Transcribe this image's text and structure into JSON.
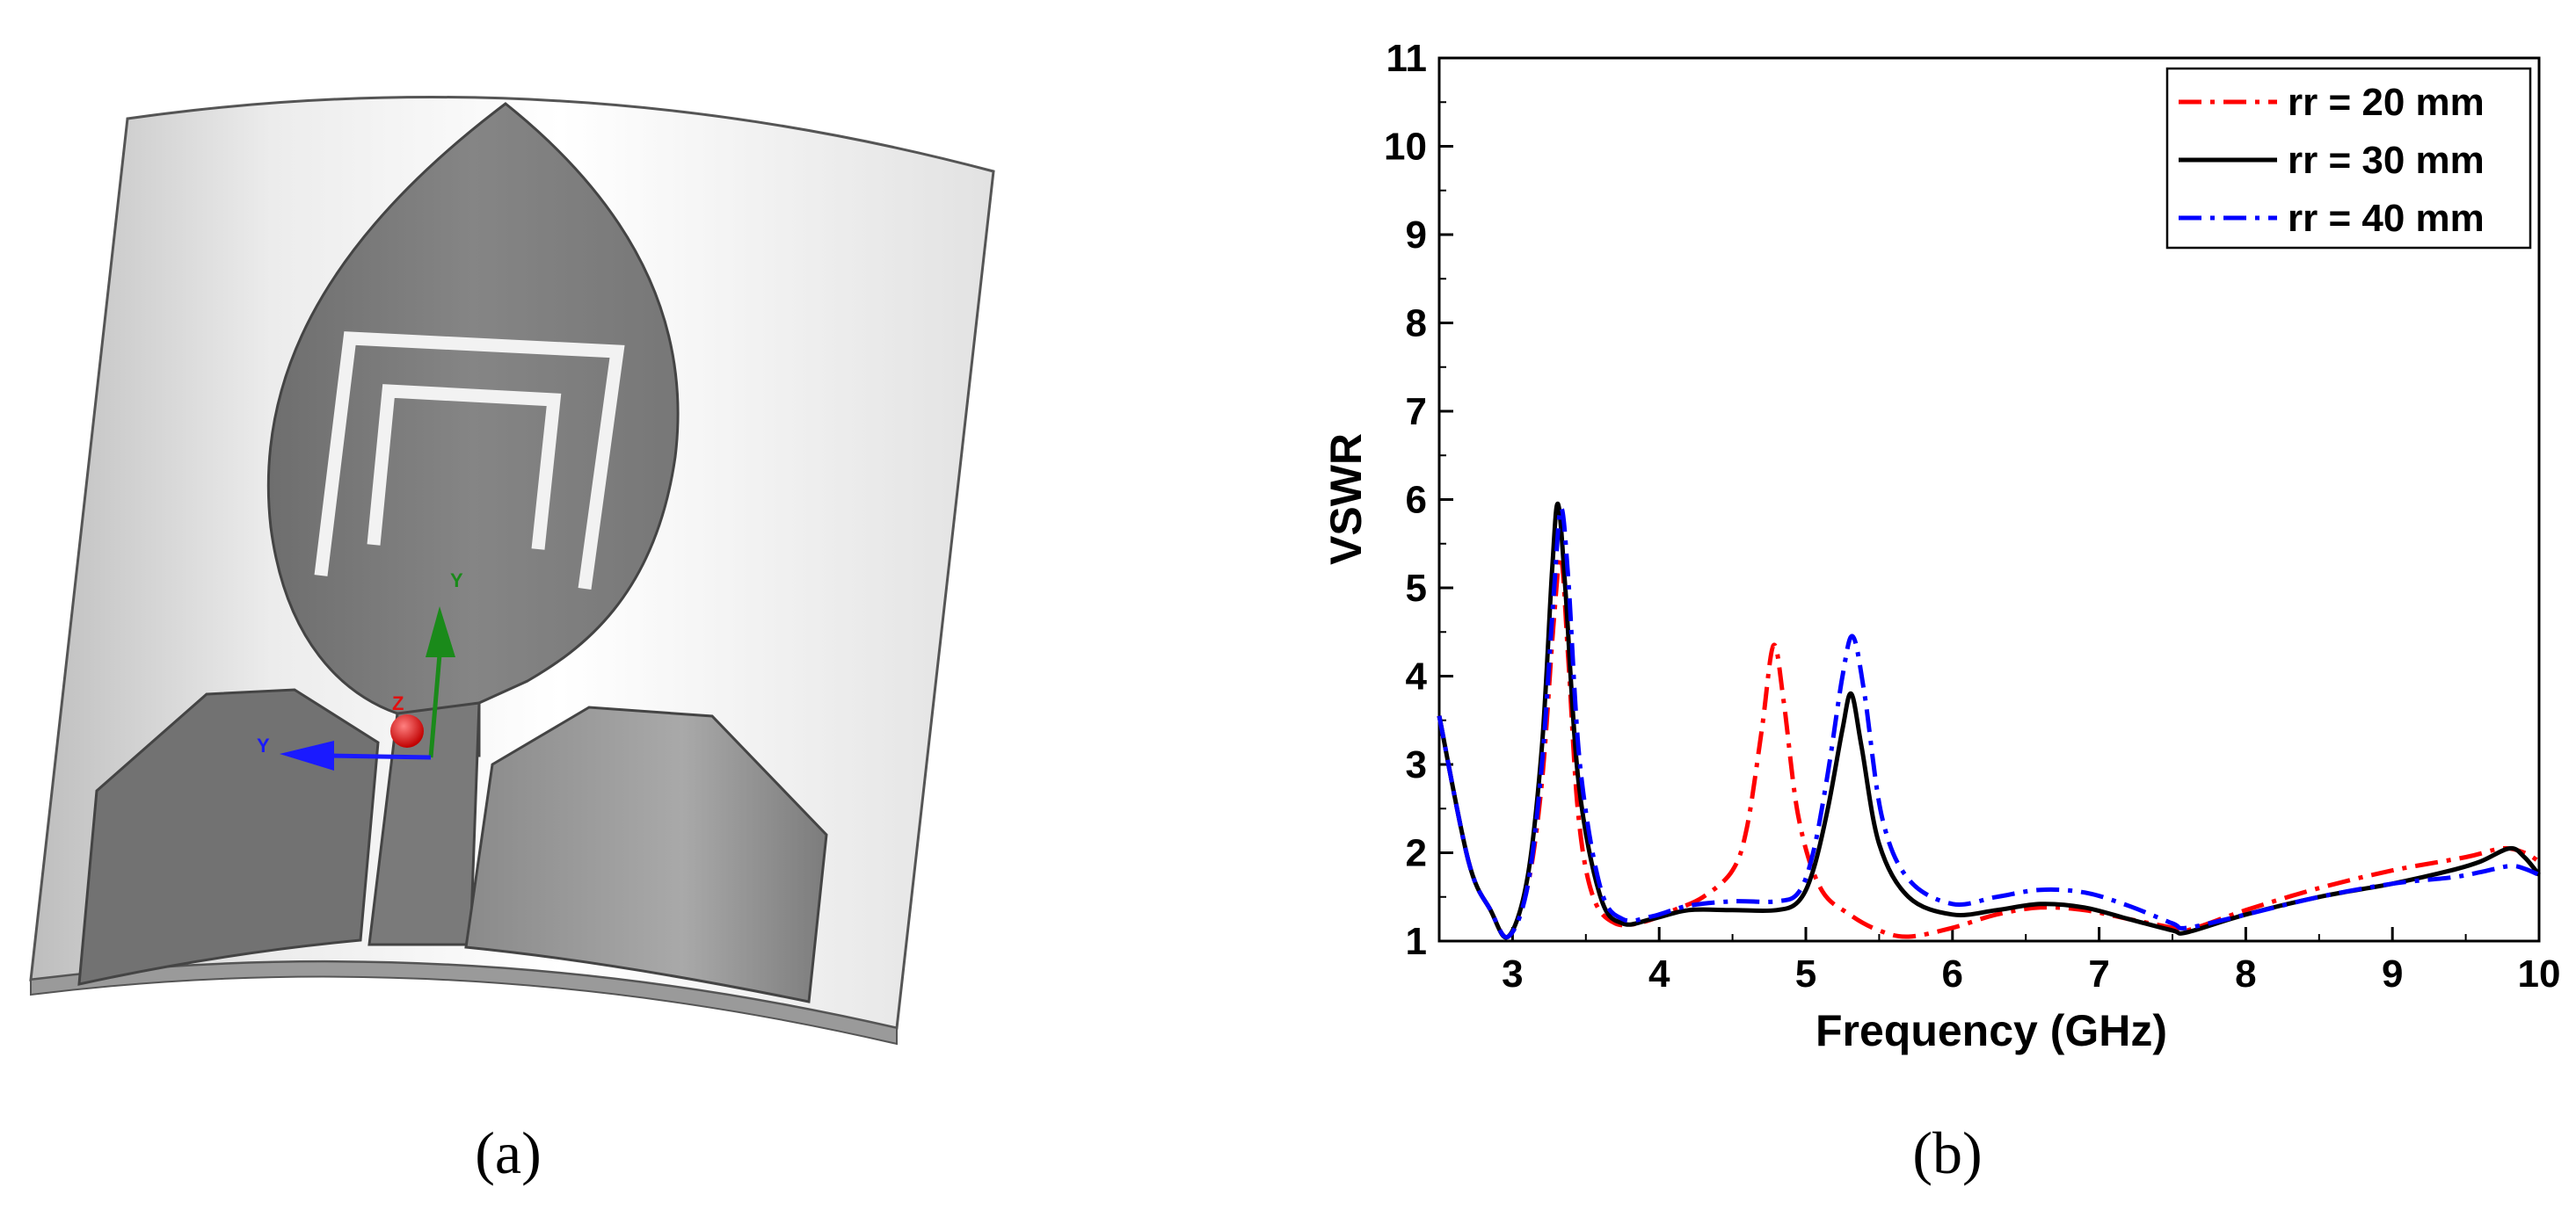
{
  "panel_a": {
    "caption": "(a)",
    "axes": {
      "y_green": "Y",
      "y_blue": "Y",
      "z_red": "Z"
    },
    "colors": {
      "substrate": "#e6e6e6",
      "metal": "#7a7a7a",
      "axis_y_green": "#1a8a1a",
      "axis_y_blue": "#1a1aff",
      "axis_z_red": "#e01010"
    }
  },
  "panel_b": {
    "caption": "(b)"
  },
  "chart_data": {
    "type": "line",
    "xlabel": "Frequency (GHz)",
    "ylabel": "VSWR",
    "xlim": [
      2.5,
      10
    ],
    "ylim": [
      1,
      11
    ],
    "xticks": [
      "3",
      "4",
      "5",
      "6",
      "7",
      "8",
      "9",
      "10"
    ],
    "yticks": [
      "1",
      "2",
      "3",
      "4",
      "5",
      "6",
      "7",
      "8",
      "9",
      "10",
      "11"
    ],
    "grid": false,
    "legend_position": "top-right",
    "series": [
      {
        "name": "rr = 20 mm",
        "color": "#ff0000",
        "style": "dashdot",
        "x": [
          2.5,
          2.7,
          2.85,
          2.97,
          3.1,
          3.2,
          3.28,
          3.33,
          3.38,
          3.45,
          3.55,
          3.7,
          3.9,
          4.1,
          4.3,
          4.5,
          4.6,
          4.7,
          4.78,
          4.85,
          4.95,
          5.1,
          5.3,
          5.5,
          5.7,
          6.0,
          6.3,
          6.6,
          6.9,
          7.2,
          7.5,
          7.6,
          8.0,
          8.5,
          9.0,
          9.5,
          9.75,
          9.9,
          10.0
        ],
        "y": [
          3.55,
          1.9,
          1.35,
          1.05,
          1.6,
          2.8,
          4.6,
          5.35,
          4.2,
          2.4,
          1.5,
          1.2,
          1.22,
          1.35,
          1.5,
          1.8,
          2.3,
          3.4,
          4.35,
          3.7,
          2.4,
          1.6,
          1.3,
          1.12,
          1.05,
          1.15,
          1.3,
          1.38,
          1.35,
          1.25,
          1.15,
          1.12,
          1.35,
          1.6,
          1.8,
          1.95,
          2.05,
          2.0,
          1.9
        ]
      },
      {
        "name": "rr = 30 mm",
        "color": "#000000",
        "style": "solid",
        "x": [
          2.5,
          2.7,
          2.85,
          2.97,
          3.1,
          3.2,
          3.27,
          3.31,
          3.36,
          3.45,
          3.6,
          3.75,
          3.95,
          4.2,
          4.5,
          4.8,
          4.95,
          5.05,
          5.15,
          5.25,
          5.31,
          5.38,
          5.5,
          5.7,
          6.0,
          6.3,
          6.6,
          6.9,
          7.2,
          7.5,
          7.6,
          8.0,
          8.5,
          9.0,
          9.4,
          9.6,
          9.8,
          9.9,
          10.0
        ],
        "y": [
          3.55,
          1.9,
          1.35,
          1.05,
          1.7,
          3.2,
          5.2,
          5.95,
          5.0,
          2.8,
          1.5,
          1.2,
          1.25,
          1.35,
          1.35,
          1.35,
          1.45,
          1.8,
          2.5,
          3.4,
          3.8,
          3.2,
          2.1,
          1.5,
          1.3,
          1.35,
          1.42,
          1.38,
          1.25,
          1.12,
          1.1,
          1.3,
          1.5,
          1.65,
          1.8,
          1.9,
          2.05,
          1.95,
          1.75
        ]
      },
      {
        "name": "rr = 40 mm",
        "color": "#0000ff",
        "style": "dashdot",
        "x": [
          2.5,
          2.7,
          2.85,
          2.97,
          3.1,
          3.2,
          3.28,
          3.33,
          3.38,
          3.46,
          3.6,
          3.75,
          3.95,
          4.2,
          4.5,
          4.8,
          4.95,
          5.05,
          5.15,
          5.25,
          5.32,
          5.4,
          5.52,
          5.7,
          6.0,
          6.3,
          6.6,
          6.9,
          7.2,
          7.5,
          7.6,
          8.0,
          8.5,
          9.0,
          9.4,
          9.6,
          9.8,
          9.9,
          10.0
        ],
        "y": [
          3.55,
          1.9,
          1.35,
          1.05,
          1.6,
          3.0,
          4.9,
          5.9,
          5.1,
          3.0,
          1.6,
          1.25,
          1.28,
          1.4,
          1.45,
          1.45,
          1.55,
          2.0,
          2.9,
          4.0,
          4.45,
          3.8,
          2.4,
          1.7,
          1.42,
          1.5,
          1.58,
          1.55,
          1.4,
          1.2,
          1.15,
          1.3,
          1.5,
          1.65,
          1.72,
          1.78,
          1.85,
          1.82,
          1.75
        ]
      }
    ]
  }
}
